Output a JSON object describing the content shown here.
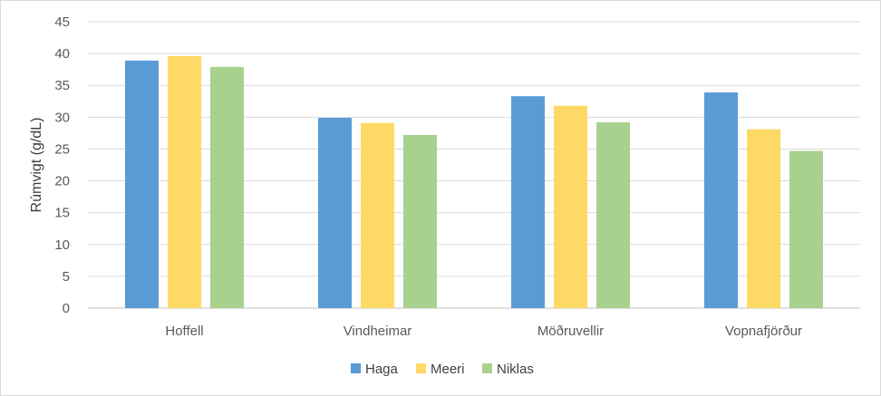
{
  "chart_data": {
    "type": "bar",
    "title": "",
    "xlabel": "",
    "ylabel": "Rúmvigt (g/dL)",
    "ylim": [
      0,
      45
    ],
    "yticks": [
      0,
      5,
      10,
      15,
      20,
      25,
      30,
      35,
      40,
      45
    ],
    "grid": true,
    "legend_position": "bottom",
    "categories": [
      "Hoffell",
      "Vindheimar",
      "Möðruvellir",
      "Vopnafjörður"
    ],
    "series": [
      {
        "name": "Haga",
        "color": "#5b9bd5",
        "values": [
          38.9,
          29.9,
          33.3,
          33.9
        ]
      },
      {
        "name": "Meeri",
        "color": "#ffd966",
        "values": [
          39.6,
          29.1,
          31.8,
          28.1
        ]
      },
      {
        "name": "Niklas",
        "color": "#a9d18e",
        "values": [
          37.9,
          27.2,
          29.2,
          24.7
        ]
      }
    ]
  }
}
